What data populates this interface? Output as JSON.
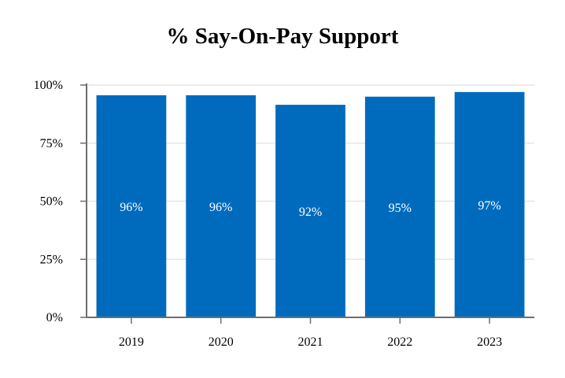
{
  "chart_data": {
    "type": "bar",
    "title": "% Say-On-Pay Support",
    "categories": [
      "2019",
      "2020",
      "2021",
      "2022",
      "2023"
    ],
    "values": [
      96,
      96,
      92,
      95,
      97
    ],
    "data_labels": [
      "96%",
      "96%",
      "92%",
      "95%",
      "97%"
    ],
    "bar_heights_pct": [
      95.6,
      95.6,
      91.5,
      95.0,
      97.0
    ],
    "xlabel": "",
    "ylabel": "",
    "ylim": [
      0,
      100
    ],
    "yticks": [
      0,
      25,
      50,
      75,
      100
    ],
    "ytick_labels": [
      "0%",
      "25%",
      "50%",
      "75%",
      "100%"
    ],
    "grid": true,
    "legend": "none",
    "colors": {
      "bar": "#006BBD",
      "grid": "#E6E6E6",
      "axis": "#6E6E6E",
      "label": "#FFFFFF"
    }
  }
}
